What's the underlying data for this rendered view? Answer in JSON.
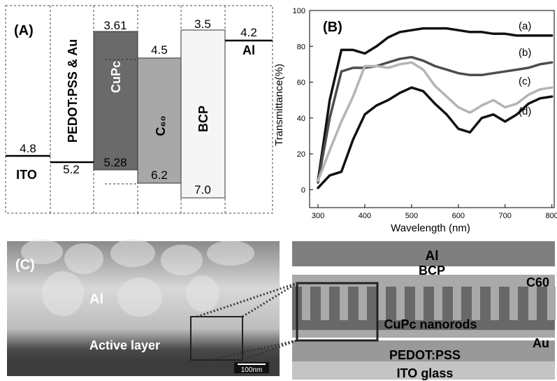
{
  "panel_a": {
    "panel_label": "(A)",
    "ito": {
      "label": "ITO",
      "level": "4.8"
    },
    "pedot": {
      "label": "PEDOT:PSS & Au",
      "level": "5.2"
    },
    "cupc": {
      "label": "CuPc",
      "top": "3.61",
      "bottom": "5.28"
    },
    "c60": {
      "label": "C₆₀",
      "top": "4.5",
      "bottom": "6.2"
    },
    "bcp": {
      "label": "BCP",
      "top": "3.5",
      "bottom": "7.0"
    },
    "al": {
      "label": "Al",
      "level": "4.2"
    }
  },
  "chart_data": {
    "type": "line",
    "panel_label": "(B)",
    "xlabel": "Wavelength (nm)",
    "ylabel": "Transmittance(%)",
    "x": [
      300,
      325,
      350,
      375,
      400,
      425,
      450,
      475,
      500,
      525,
      550,
      575,
      600,
      625,
      650,
      675,
      700,
      725,
      750,
      775,
      800
    ],
    "series": [
      {
        "name": "(a)",
        "color": "#111111",
        "values": [
          5,
          50,
          78,
          78,
          76,
          80,
          85,
          88,
          89,
          90,
          90,
          90,
          89,
          88,
          88,
          87,
          87,
          86,
          86,
          86,
          86
        ]
      },
      {
        "name": "(b)",
        "color": "#4a4f4c",
        "values": [
          4,
          40,
          66,
          68,
          68,
          69,
          71,
          73,
          74,
          72,
          69,
          67,
          65,
          64,
          64,
          65,
          66,
          67,
          68,
          70,
          71
        ]
      },
      {
        "name": "(c)",
        "color": "#b4b4b4",
        "values": [
          5,
          22,
          38,
          52,
          69,
          69,
          68,
          70,
          71,
          67,
          58,
          52,
          46,
          43,
          47,
          50,
          46,
          48,
          53,
          56,
          57
        ]
      },
      {
        "name": "(d)",
        "color": "#111111",
        "values": [
          1,
          8,
          10,
          28,
          42,
          47,
          50,
          54,
          57,
          55,
          48,
          42,
          34,
          32,
          40,
          42,
          38,
          42,
          48,
          51,
          52
        ]
      }
    ],
    "xlim": [
      282,
      805
    ],
    "ylim": [
      -10,
      100
    ],
    "xticks": [
      300,
      400,
      500,
      600,
      700,
      800
    ],
    "yticks": [
      0,
      20,
      40,
      60,
      80,
      100
    ]
  },
  "panel_c": {
    "panel_label": "(C)",
    "sem": {
      "top_label": "Al",
      "bottom_label": "Active layer",
      "scale_bar": "100nm"
    },
    "schematic": {
      "layers": [
        "Al",
        "BCP",
        "C60",
        "CuPc nanorods",
        "Au",
        "PEDOT:PSS",
        "ITO glass"
      ]
    }
  }
}
